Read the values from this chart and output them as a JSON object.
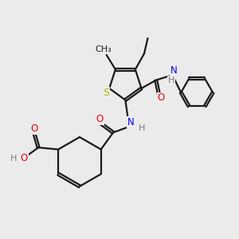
{
  "bg_color": "#ebebeb",
  "bond_color": "#1a1a1a",
  "S_color": "#b8b800",
  "N_color": "#0000ee",
  "O_color": "#ee0000",
  "H_color": "#7a7a7a",
  "line_width": 1.6,
  "figsize": [
    3.0,
    3.0
  ],
  "dpi": 100,
  "xlim": [
    0,
    10
  ],
  "ylim": [
    0,
    10
  ]
}
